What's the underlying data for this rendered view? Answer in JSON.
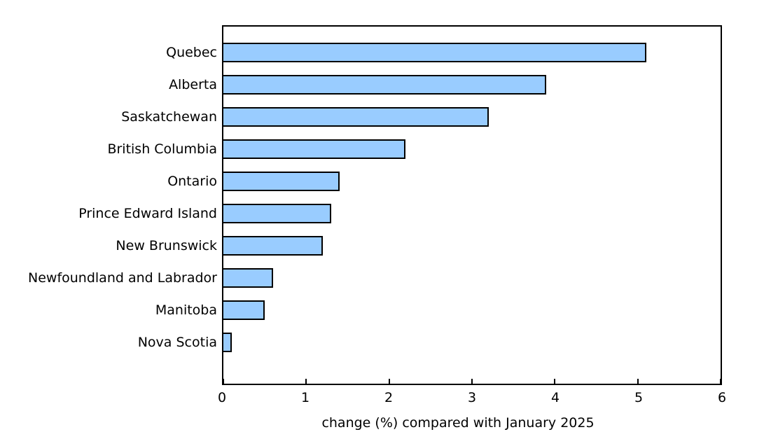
{
  "chart_data": {
    "type": "bar",
    "orientation": "horizontal",
    "categories": [
      "Quebec",
      "Alberta",
      "Saskatchewan",
      "British Columbia",
      "Ontario",
      "Prince Edward Island",
      "New Brunswick",
      "Newfoundland and Labrador",
      "Manitoba",
      "Nova Scotia"
    ],
    "values": [
      5.1,
      3.9,
      3.2,
      2.2,
      1.4,
      1.3,
      1.2,
      0.6,
      0.5,
      0.1
    ],
    "title": "",
    "xlabel": "change (%) compared with January 2025",
    "ylabel": "",
    "xlim": [
      0,
      6
    ],
    "xticks": [
      0,
      1,
      2,
      3,
      4,
      5,
      6
    ],
    "grid": false,
    "legend": false,
    "bar_fill_color": "#99CCFF",
    "bar_border_color": "#000000",
    "frame_color": "#000000",
    "text_color": "#000000"
  }
}
